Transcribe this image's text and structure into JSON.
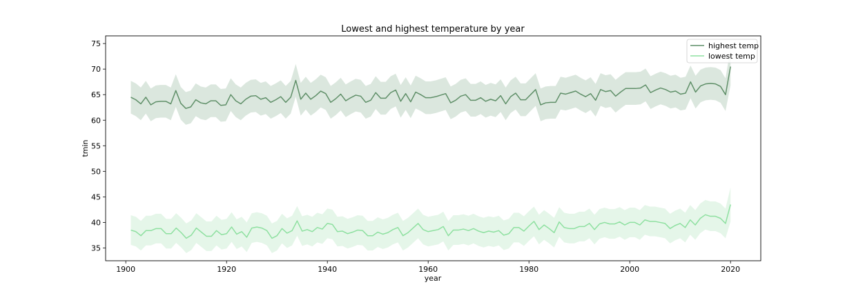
{
  "chart_data": {
    "type": "line",
    "title": "Lowest and highest temperature by year",
    "xlabel": "year",
    "ylabel": "tmin",
    "xlim": [
      1896,
      2026
    ],
    "ylim": [
      32.5,
      76.5
    ],
    "xticks": [
      1900,
      1920,
      1940,
      1960,
      1980,
      2000,
      2020
    ],
    "yticks": [
      35,
      40,
      45,
      50,
      55,
      60,
      65,
      70,
      75
    ],
    "grid": false,
    "legend_position": "top-right",
    "x_start": 1901,
    "x_end": 2020,
    "series": [
      {
        "name": "highest temp",
        "color": "#5f8f68",
        "band_color": "#dbe7de",
        "band_halfwidth": 3.2,
        "values": [
          64.5,
          64.0,
          63.2,
          64.5,
          63.0,
          63.6,
          63.7,
          63.7,
          63.2,
          65.8,
          63.3,
          62.3,
          62.6,
          64.0,
          63.4,
          63.2,
          63.8,
          63.8,
          62.9,
          63.0,
          65.0,
          63.8,
          63.2,
          64.1,
          64.7,
          64.8,
          64.1,
          64.4,
          63.5,
          64.0,
          64.6,
          63.5,
          64.5,
          67.8,
          64.1,
          65.3,
          64.1,
          64.8,
          65.7,
          65.2,
          63.5,
          64.2,
          65.1,
          63.8,
          64.4,
          64.9,
          64.7,
          63.5,
          63.9,
          65.4,
          64.3,
          64.3,
          65.4,
          65.9,
          63.7,
          65.2,
          63.6,
          65.5,
          65.0,
          64.4,
          64.4,
          64.6,
          64.9,
          65.2,
          63.4,
          63.9,
          64.7,
          65.0,
          63.9,
          63.9,
          64.4,
          63.7,
          64.1,
          63.8,
          64.8,
          63.2,
          64.6,
          65.3,
          64.0,
          64.0,
          65.0,
          66.0,
          63.0,
          63.4,
          63.5,
          63.5,
          65.3,
          65.1,
          65.4,
          65.7,
          65.1,
          64.6,
          65.2,
          63.9,
          66.0,
          65.6,
          65.8,
          64.7,
          65.5,
          66.2,
          66.2,
          66.2,
          66.3,
          66.9,
          65.4,
          65.9,
          66.3,
          66.0,
          65.5,
          65.7,
          65.1,
          65.3,
          67.5,
          65.5,
          66.7,
          67.1,
          67.2,
          67.1,
          66.6,
          65.0,
          70.5
        ]
      },
      {
        "name": "lowest temp",
        "color": "#8ee0a0",
        "band_color": "#e5f6e9",
        "band_halfwidth": 2.9,
        "values": [
          38.5,
          38.2,
          37.4,
          38.4,
          38.4,
          38.8,
          38.8,
          37.8,
          37.8,
          38.9,
          38.0,
          36.9,
          37.5,
          38.9,
          38.1,
          37.3,
          37.3,
          38.4,
          37.6,
          37.8,
          39.1,
          37.7,
          38.2,
          37.1,
          38.9,
          39.1,
          38.9,
          38.4,
          36.9,
          37.4,
          38.8,
          37.9,
          38.4,
          40.3,
          38.3,
          38.6,
          38.2,
          39.0,
          38.7,
          39.8,
          39.6,
          38.2,
          38.3,
          37.8,
          38.1,
          38.5,
          38.4,
          37.4,
          37.4,
          38.1,
          37.7,
          38.0,
          38.6,
          39.0,
          37.4,
          38.0,
          38.9,
          39.8,
          38.6,
          38.2,
          38.4,
          38.6,
          39.2,
          37.4,
          38.5,
          38.5,
          38.7,
          38.4,
          38.8,
          38.3,
          38.0,
          38.3,
          38.1,
          38.4,
          37.5,
          37.8,
          39.0,
          39.0,
          38.3,
          39.3,
          40.2,
          38.6,
          39.5,
          38.8,
          38.0,
          40.1,
          39.0,
          38.8,
          38.8,
          39.2,
          39.2,
          39.8,
          38.6,
          39.7,
          40.0,
          39.7,
          39.7,
          40.1,
          39.5,
          40.0,
          40.0,
          39.5,
          40.5,
          40.2,
          40.2,
          40.0,
          39.8,
          38.8,
          39.4,
          39.8,
          39.0,
          40.5,
          39.5,
          40.8,
          41.5,
          41.2,
          41.2,
          40.8,
          39.8,
          43.5
        ]
      }
    ]
  }
}
